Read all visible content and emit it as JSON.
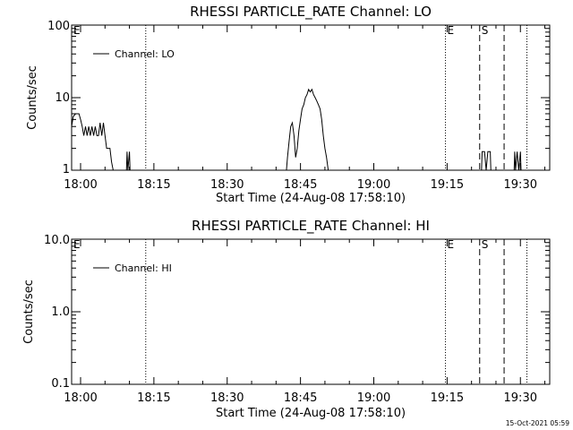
{
  "chart_data": [
    {
      "type": "line",
      "title": "RHESSI PARTICLE_RATE Channel: LO",
      "xlabel": "Start Time (24-Aug-08 17:58:10)",
      "ylabel": "Counts/sec",
      "y_scale": "log",
      "ylim": [
        1,
        100
      ],
      "y_tick_labels": [
        "1",
        "10",
        "100"
      ],
      "xlim": [
        "17:58:10",
        "19:36:00"
      ],
      "x_tick_labels": [
        "18:00",
        "18:15",
        "18:30",
        "18:45",
        "19:00",
        "19:15",
        "19:30"
      ],
      "legend": {
        "position": "top-left",
        "entries": [
          "Channel: LO"
        ]
      },
      "grid": false,
      "markers": [
        {
          "time": "18:13:20",
          "style": "dotted",
          "label": ""
        },
        {
          "time": "19:14:40",
          "style": "dotted",
          "label": "E"
        },
        {
          "time": "19:21:40",
          "style": "dashed",
          "label": "S"
        },
        {
          "time": "19:26:40",
          "style": "dashed",
          "label": ""
        },
        {
          "time": "19:31:20",
          "style": "dotted",
          "label": ""
        }
      ],
      "corner_label": "E",
      "series": [
        {
          "name": "Channel: LO",
          "points": [
            [
              "17:58:10",
              4
            ],
            [
              "17:58:30",
              5.5
            ],
            [
              "17:59:00",
              6
            ],
            [
              "17:59:40",
              6
            ],
            [
              "18:00:00",
              5
            ],
            [
              "18:00:20",
              4
            ],
            [
              "18:00:40",
              3
            ],
            [
              "18:01:00",
              4
            ],
            [
              "18:01:20",
              3
            ],
            [
              "18:01:40",
              4
            ],
            [
              "18:02:00",
              3
            ],
            [
              "18:02:20",
              4
            ],
            [
              "18:02:40",
              3
            ],
            [
              "18:03:00",
              4
            ],
            [
              "18:03:20",
              3
            ],
            [
              "18:03:40",
              3
            ],
            [
              "18:04:00",
              4.5
            ],
            [
              "18:04:20",
              3
            ],
            [
              "18:04:40",
              4.5
            ],
            [
              "18:05:00",
              3
            ],
            [
              "18:05:20",
              2
            ],
            [
              "18:05:40",
              2
            ],
            [
              "18:06:00",
              2
            ],
            [
              "18:06:20",
              1.3
            ],
            [
              "18:06:40",
              1
            ],
            [
              "18:07:00",
              0.8
            ],
            [
              "18:09:20",
              0.8
            ],
            [
              "18:09:30",
              1.8
            ],
            [
              "18:09:40",
              1
            ],
            [
              "18:10:00",
              1.8
            ],
            [
              "18:10:10",
              0.8
            ],
            [
              "18:42:00",
              0.8
            ],
            [
              "18:42:20",
              1.5
            ],
            [
              "18:42:40",
              2.5
            ],
            [
              "18:43:00",
              4
            ],
            [
              "18:43:20",
              4.5
            ],
            [
              "18:43:40",
              3
            ],
            [
              "18:44:00",
              1.5
            ],
            [
              "18:44:20",
              2
            ],
            [
              "18:44:40",
              3.5
            ],
            [
              "18:45:00",
              5
            ],
            [
              "18:45:20",
              7
            ],
            [
              "18:45:40",
              8
            ],
            [
              "18:46:00",
              10
            ],
            [
              "18:46:20",
              11
            ],
            [
              "18:46:40",
              13
            ],
            [
              "18:47:00",
              12
            ],
            [
              "18:47:20",
              13
            ],
            [
              "18:47:40",
              11
            ],
            [
              "18:48:00",
              10
            ],
            [
              "18:48:20",
              9
            ],
            [
              "18:48:40",
              8
            ],
            [
              "18:49:00",
              7
            ],
            [
              "18:49:20",
              5
            ],
            [
              "18:49:40",
              3
            ],
            [
              "18:50:00",
              2
            ],
            [
              "18:50:20",
              1.5
            ],
            [
              "18:50:40",
              1
            ],
            [
              "18:51:00",
              0.8
            ],
            [
              "19:22:00",
              0.8
            ],
            [
              "19:22:10",
              1.8
            ],
            [
              "19:22:40",
              1.8
            ],
            [
              "19:23:00",
              1
            ],
            [
              "19:23:20",
              1.8
            ],
            [
              "19:23:50",
              1.8
            ],
            [
              "19:24:00",
              0.8
            ],
            [
              "19:28:40",
              0.8
            ],
            [
              "19:28:50",
              1.8
            ],
            [
              "19:29:00",
              1
            ],
            [
              "19:29:20",
              1.8
            ],
            [
              "19:29:40",
              1
            ],
            [
              "19:30:00",
              1.8
            ],
            [
              "19:30:10",
              0.8
            ],
            [
              "19:36:00",
              0.8
            ]
          ]
        }
      ]
    },
    {
      "type": "line",
      "title": "RHESSI PARTICLE_RATE Channel: HI",
      "xlabel": "Start Time (24-Aug-08 17:58:10)",
      "ylabel": "Counts/sec",
      "y_scale": "log",
      "ylim": [
        0.1,
        10
      ],
      "y_tick_labels": [
        "0.1",
        "1.0",
        "10.0"
      ],
      "xlim": [
        "17:58:10",
        "19:36:00"
      ],
      "x_tick_labels": [
        "18:00",
        "18:15",
        "18:30",
        "18:45",
        "19:00",
        "19:15",
        "19:30"
      ],
      "legend": {
        "position": "top-left",
        "entries": [
          "Channel: HI"
        ]
      },
      "grid": false,
      "markers": [
        {
          "time": "18:13:20",
          "style": "dotted",
          "label": ""
        },
        {
          "time": "19:14:40",
          "style": "dotted",
          "label": "E"
        },
        {
          "time": "19:21:40",
          "style": "dashed",
          "label": "S"
        },
        {
          "time": "19:26:40",
          "style": "dashed",
          "label": ""
        },
        {
          "time": "19:31:20",
          "style": "dotted",
          "label": ""
        }
      ],
      "corner_label": "E",
      "series": [
        {
          "name": "Channel: HI",
          "points": []
        }
      ]
    }
  ],
  "footer": {
    "timestamp": "15-Oct-2021 05:59"
  }
}
